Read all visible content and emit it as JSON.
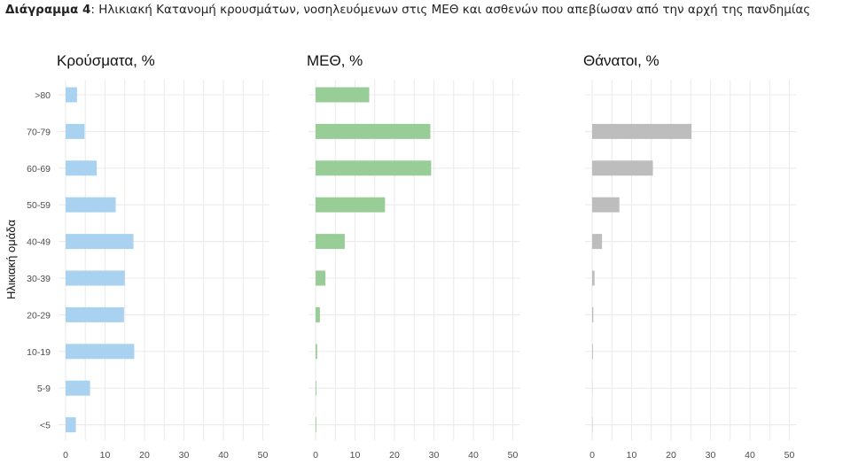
{
  "caption": {
    "prefix": "Διάγραμμα 4",
    "text": ": Ηλικιακή Κατανομή κρουσμάτων, νοσηλευόμενων στις ΜΕΘ και ασθενών που απεβίωσαν από την αρχή της πανδημίας"
  },
  "chart_data": {
    "type": "bar",
    "orientation": "horizontal",
    "ylabel": "Ηλικιακή ομάδα",
    "categories": [
      ">80",
      "70-79",
      "60-69",
      "50-59",
      "40-49",
      "30-39",
      "20-29",
      "10-19",
      "5-9",
      "<5"
    ],
    "xlim": [
      0,
      50
    ],
    "xticks": [
      0,
      10,
      20,
      30,
      40,
      50
    ],
    "grid": true,
    "panels": [
      {
        "title": "Κρούσματα, %",
        "color": "#a8d2ef",
        "values": [
          2.9,
          4.8,
          7.9,
          12.7,
          17.2,
          15.0,
          14.8,
          17.4,
          6.2,
          2.6
        ]
      },
      {
        "title": "ΜΕΘ, %",
        "color": "#98cd98",
        "values": [
          13.6,
          29.1,
          29.3,
          17.6,
          7.4,
          2.5,
          1.1,
          0.4,
          0.2,
          0.2
        ]
      },
      {
        "title": "Θάνατοι, %",
        "color": "#bdbdbd",
        "values": [
          0.0,
          25.2,
          15.4,
          6.9,
          2.5,
          0.6,
          0.3,
          0.2,
          0.05,
          0.1
        ]
      }
    ]
  }
}
